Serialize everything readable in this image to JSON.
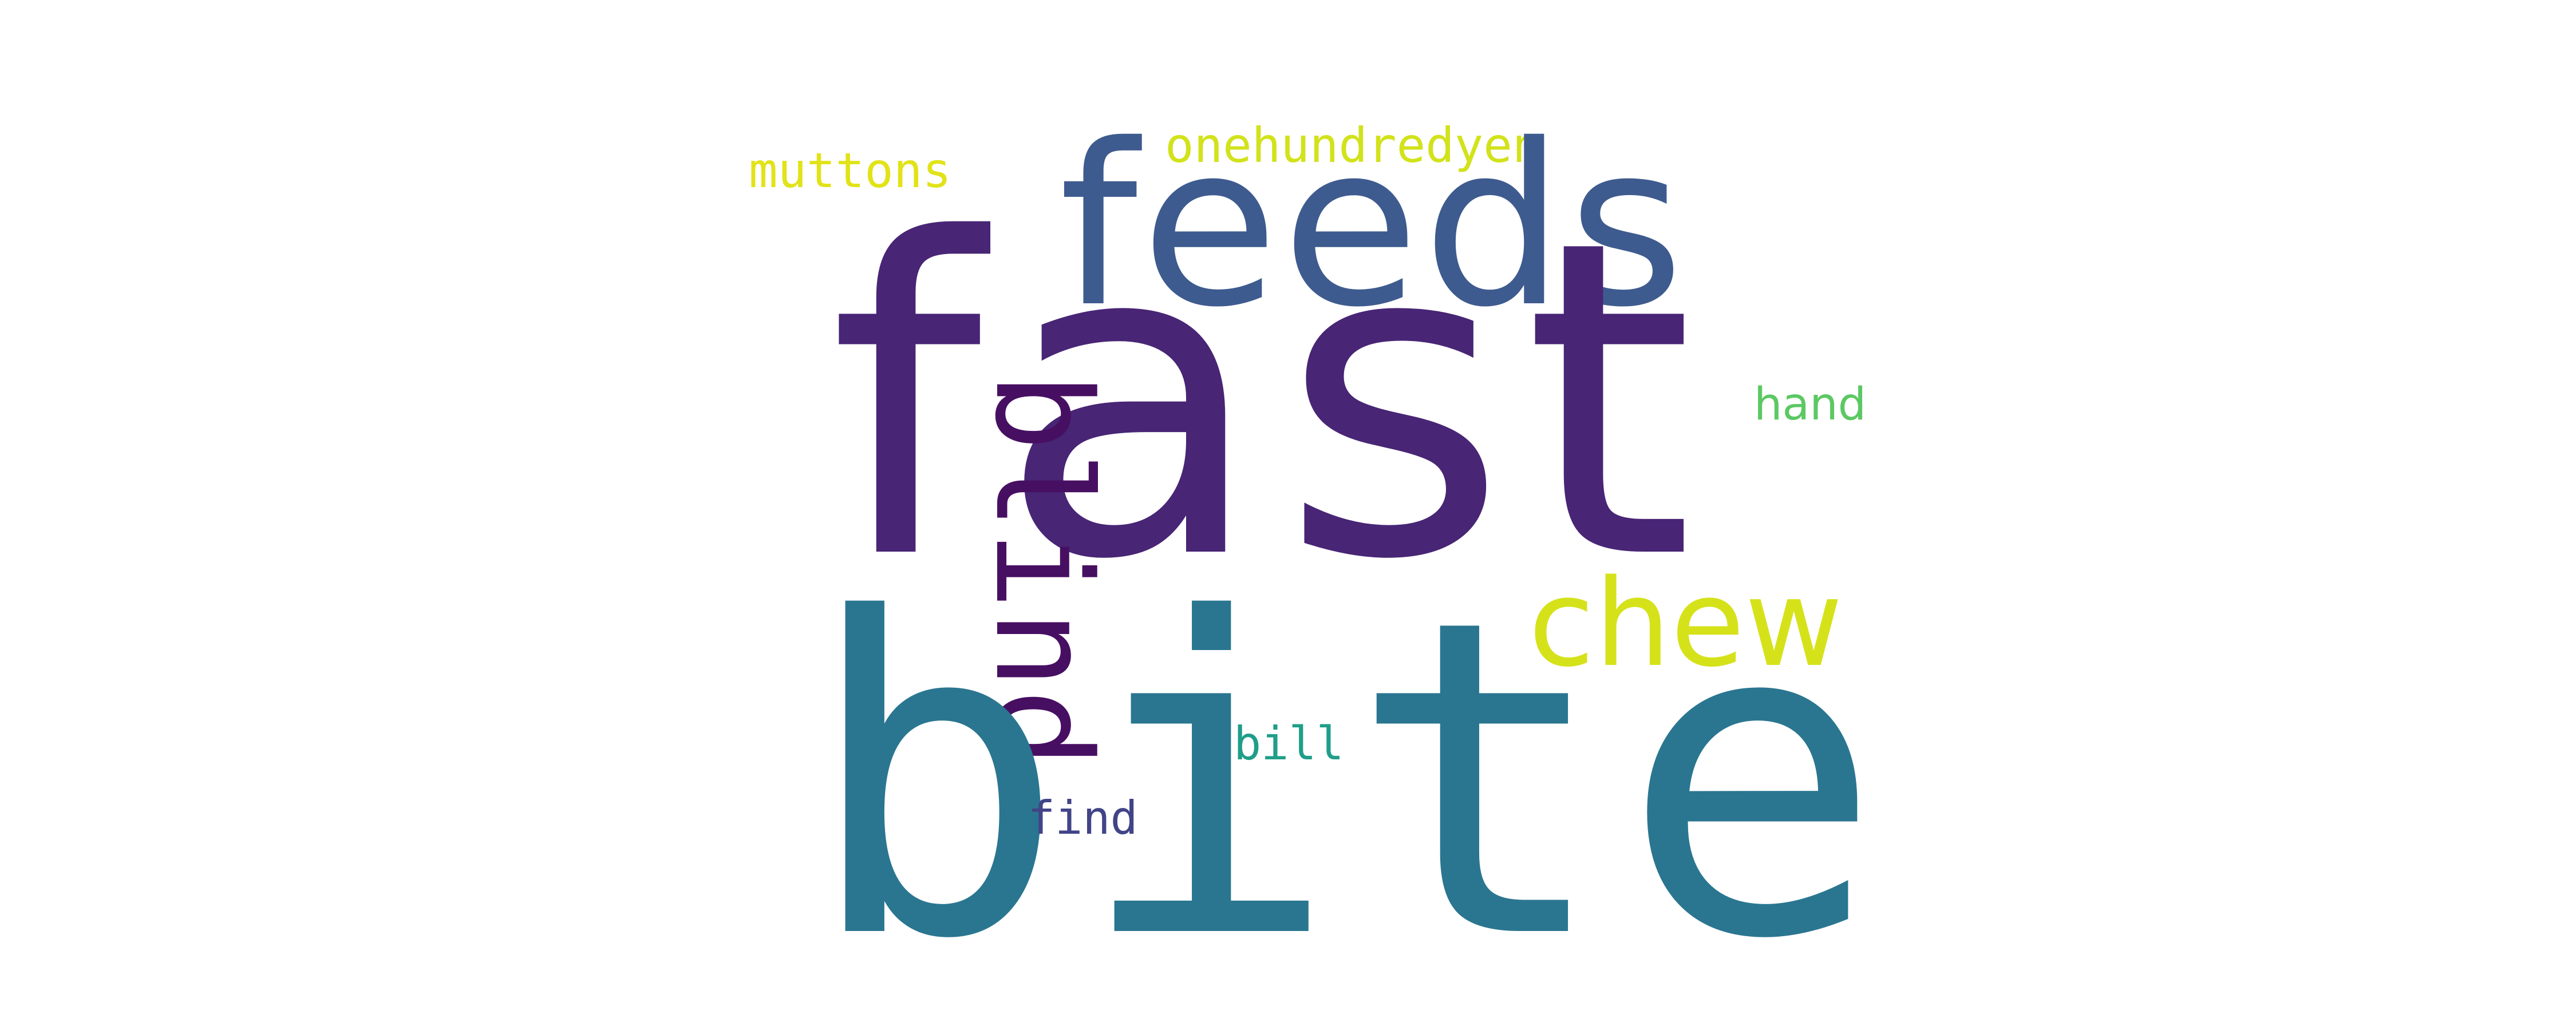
{
  "words": {
    "fast": {
      "text": "fast",
      "color": "#482575"
    },
    "bite": {
      "text": "bite",
      "color": "#2a7690"
    },
    "feeds": {
      "text": "feeds",
      "color": "#3e5b8f"
    },
    "chew": {
      "text": "chew",
      "color": "#d5e21a"
    },
    "blind": {
      "text": "blind",
      "color": "#470f62"
    },
    "onehundredyen": {
      "text": "onehundredyen",
      "color": "#d2e21b"
    },
    "muttons": {
      "text": "muttons",
      "color": "#e1e318"
    },
    "hand": {
      "text": "hand",
      "color": "#5cc863"
    },
    "bill": {
      "text": "bill",
      "color": "#1f9e89"
    },
    "find": {
      "text": "find",
      "color": "#414487"
    }
  },
  "background_color": "#ffffff"
}
